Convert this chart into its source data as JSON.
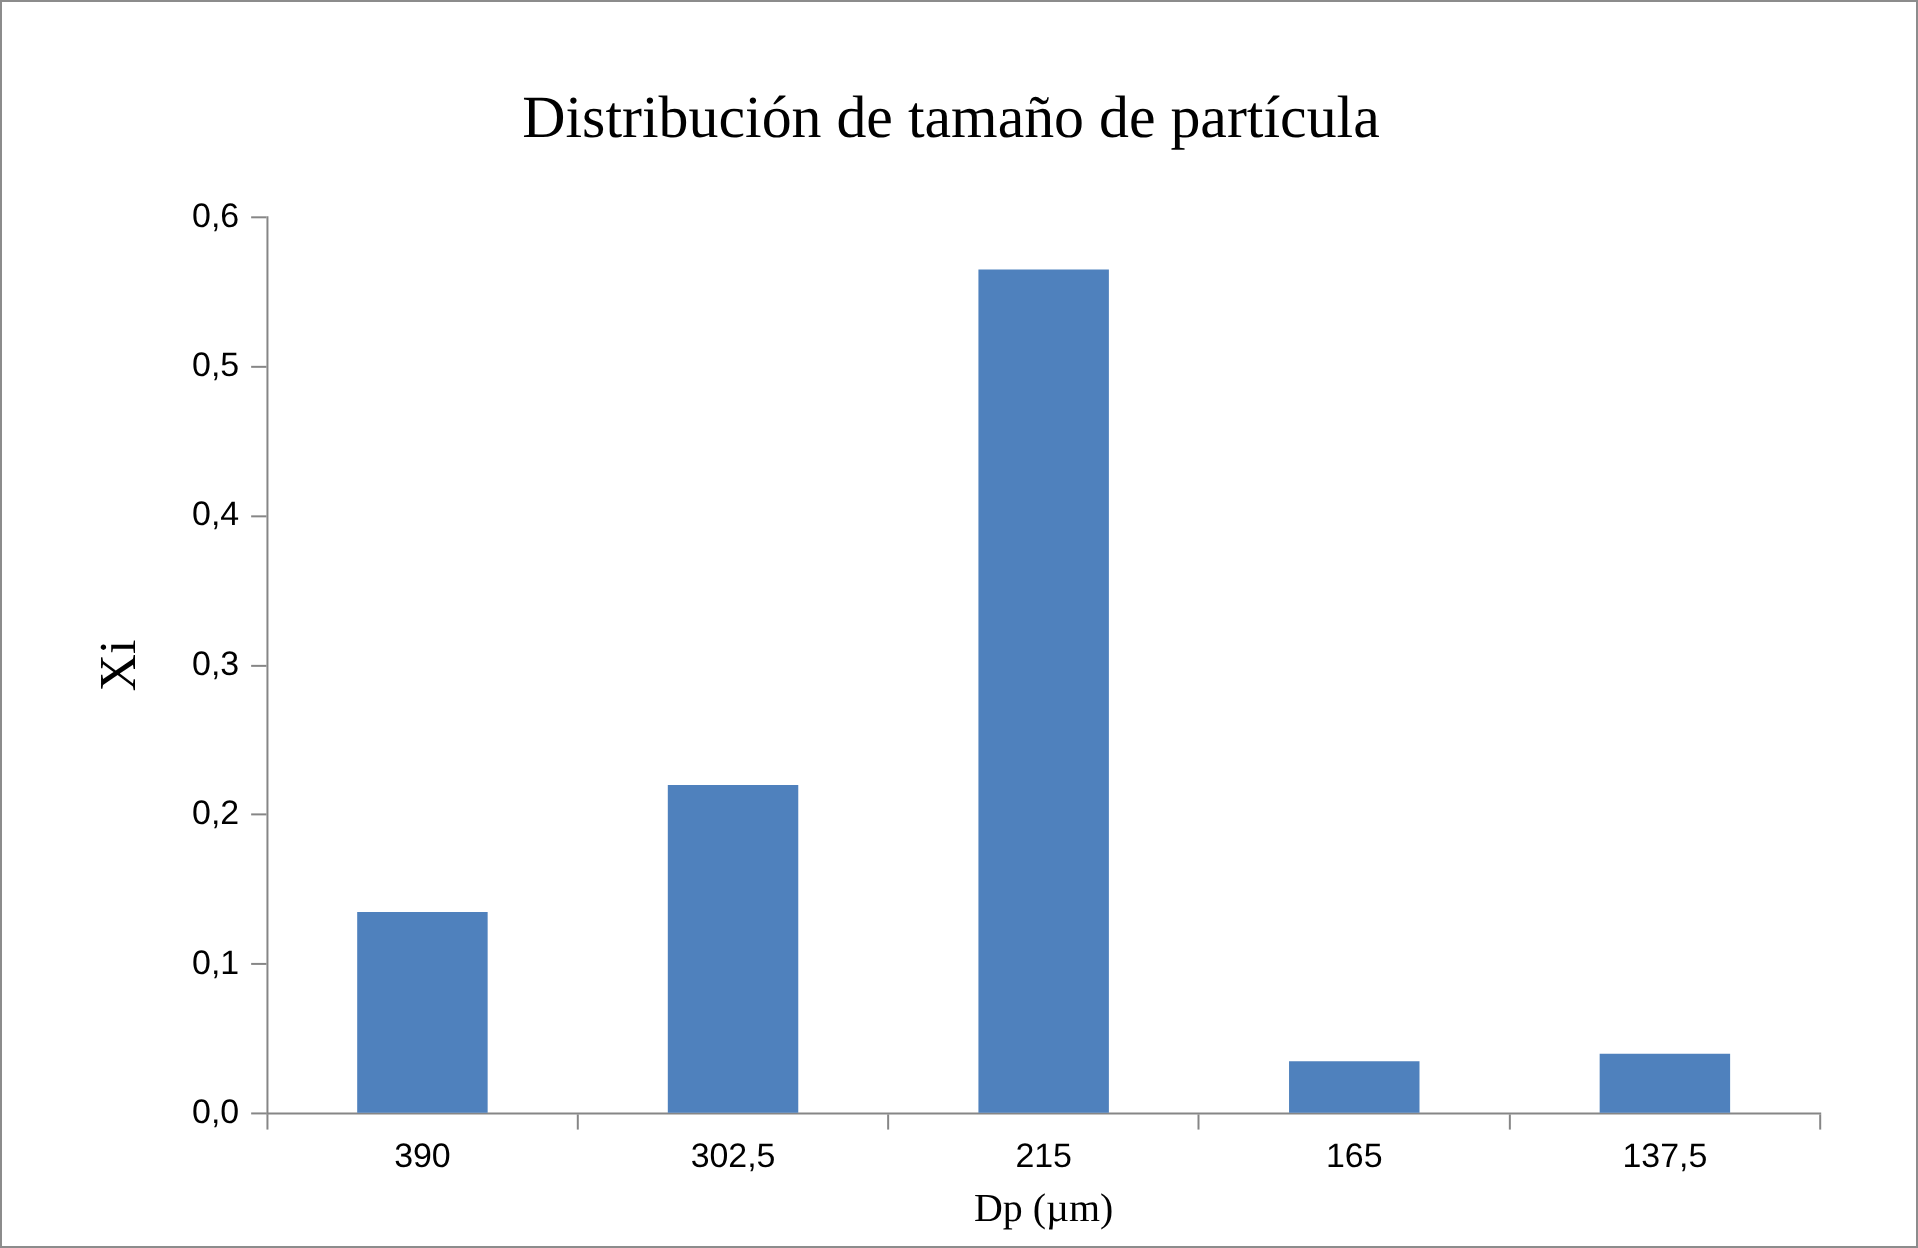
{
  "chart_data": {
    "type": "bar",
    "title": "Distribución de tamaño de partícula",
    "xlabel": "Dp (µm)",
    "ylabel": "Xi",
    "categories": [
      "390",
      "302,5",
      "215",
      "165",
      "137,5"
    ],
    "values": [
      0.135,
      0.22,
      0.565,
      0.035,
      0.04
    ],
    "color": "#4f81bd",
    "ylim": [
      0,
      0.6
    ],
    "yticks": [
      {
        "value": 0,
        "label": "0,0"
      },
      {
        "value": 0.1,
        "label": "0,1"
      },
      {
        "value": 0.2,
        "label": "0,2"
      },
      {
        "value": 0.3,
        "label": "0,3"
      },
      {
        "value": 0.4,
        "label": "0,4"
      },
      {
        "value": 0.5,
        "label": "0,5"
      },
      {
        "value": 0.6,
        "label": "0,6"
      }
    ],
    "grid": false,
    "legend": false
  }
}
